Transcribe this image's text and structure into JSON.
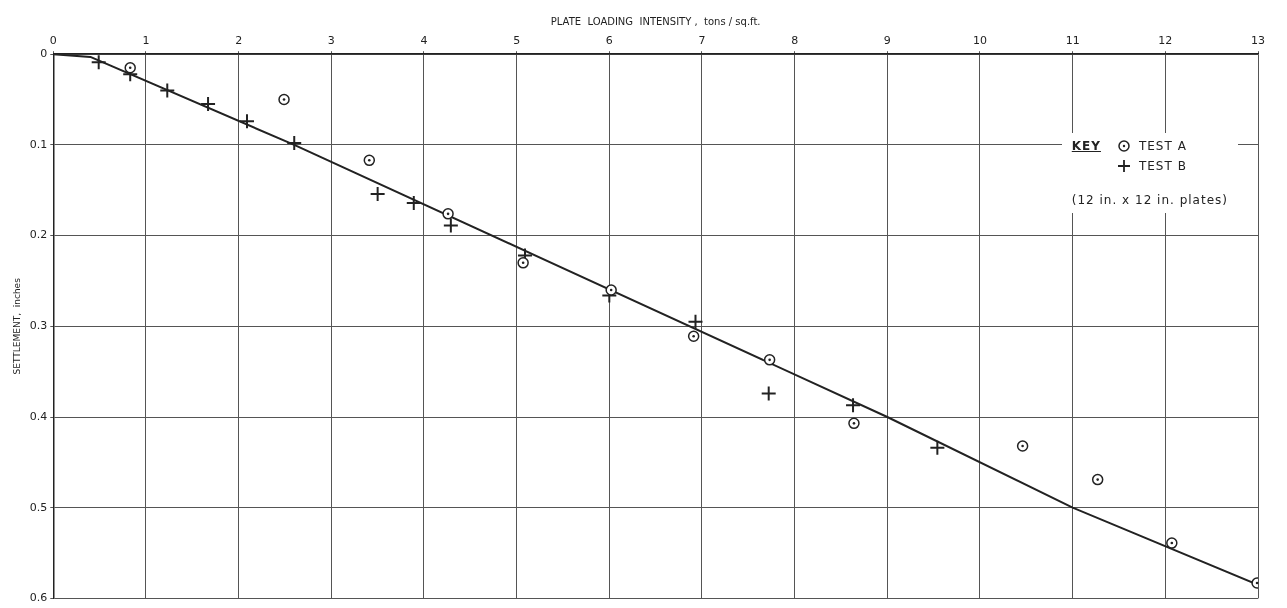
{
  "chart_data": {
    "type": "scatter",
    "xlabel": "PLATE  LOADING  INTENSITY ,  tons / sq.ft.",
    "ylabel": "SETTLEMENT,  inches",
    "legend_title": "KEY",
    "legend": "top right",
    "grid": true,
    "xlim": [
      0,
      13
    ],
    "xticks": [
      0,
      1,
      2,
      3,
      4,
      5,
      6,
      7,
      8,
      9,
      10,
      11,
      12,
      13
    ],
    "ylim": [
      0.6,
      0
    ],
    "yticks": [
      0,
      0.1,
      0.2,
      0.3,
      0.4,
      0.5,
      0.6
    ],
    "annotations": [
      "(12 in. x 12 in. plates)"
    ],
    "series": [
      {
        "name": "TEST A",
        "color": "#222222",
        "marker": "circle",
        "x": [
          0.83,
          2.49,
          3.41,
          4.26,
          5.07,
          6.02,
          6.91,
          7.73,
          8.64,
          10.46,
          11.27,
          12.07,
          12.99
        ],
        "values": [
          0.015,
          0.05,
          0.117,
          0.176,
          0.23,
          0.26,
          0.311,
          0.337,
          0.407,
          0.432,
          0.469,
          0.539,
          0.583
        ]
      },
      {
        "name": "TEST B",
        "color": "#222222",
        "marker": "cross",
        "x": [
          0.49,
          0.83,
          1.23,
          1.67,
          2.09,
          2.6,
          3.5,
          3.89,
          4.29,
          5.09,
          6.0,
          6.93,
          7.72,
          8.63,
          9.54
        ],
        "values": [
          0.009,
          0.022,
          0.04,
          0.055,
          0.074,
          0.098,
          0.154,
          0.164,
          0.189,
          0.222,
          0.266,
          0.295,
          0.374,
          0.387,
          0.434
        ]
      },
      {
        "type": "line",
        "color": "#222222",
        "marker": "none",
        "line_style": "solid",
        "x": [
          0,
          0.4,
          2.6,
          9,
          11,
          13
        ],
        "values": [
          0,
          0.003,
          0.1,
          0.4,
          0.5,
          0.585
        ]
      }
    ]
  }
}
